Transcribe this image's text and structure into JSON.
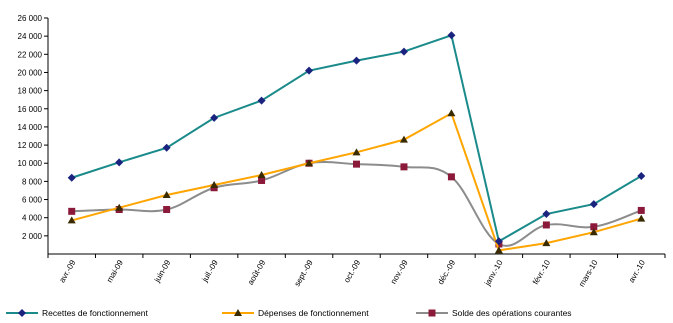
{
  "chart_data": {
    "type": "line",
    "title": "",
    "xlabel": "",
    "ylabel": "",
    "categories": [
      "avr.-09",
      "mai-09",
      "juin-09",
      "juil.-09",
      "août-09",
      "sept.-09",
      "oct.-09",
      "nov.-09",
      "déc.-09",
      "janv.-10",
      "févr.-10",
      "mars-10",
      "avr.-10"
    ],
    "ylim": [
      0,
      26000
    ],
    "yticks": [
      "2 000",
      "4 000",
      "6 000",
      "8 000",
      "10 000",
      "12 000",
      "14 000",
      "16 000",
      "18 000",
      "20 000",
      "22 000",
      "24 000",
      "26 000"
    ],
    "grid": false,
    "legend_position": "bottom",
    "series": [
      {
        "name": "Recettes de fonctionnement",
        "color": "#1a8a8a",
        "marker": "diamond",
        "marker_color": "#1a237e",
        "smooth": false,
        "values": [
          8400,
          10100,
          11700,
          15000,
          16900,
          20200,
          21300,
          22300,
          24100,
          1400,
          4400,
          5500,
          8600
        ]
      },
      {
        "name": "Dépenses de fonctionnement",
        "color": "#ffa500",
        "marker": "triangle",
        "marker_color": "#3a2a00",
        "smooth": false,
        "values": [
          3700,
          5100,
          6500,
          7600,
          8700,
          10000,
          11200,
          12600,
          15500,
          400,
          1200,
          2400,
          3900
        ]
      },
      {
        "name": "Solde des opérations courantes",
        "color": "#8c8c8c",
        "marker": "square",
        "marker_color": "#8b1a3a",
        "smooth": true,
        "values": [
          4700,
          4900,
          4900,
          7300,
          8100,
          10000,
          9900,
          9600,
          8500,
          1100,
          3200,
          3000,
          4800
        ]
      }
    ]
  }
}
